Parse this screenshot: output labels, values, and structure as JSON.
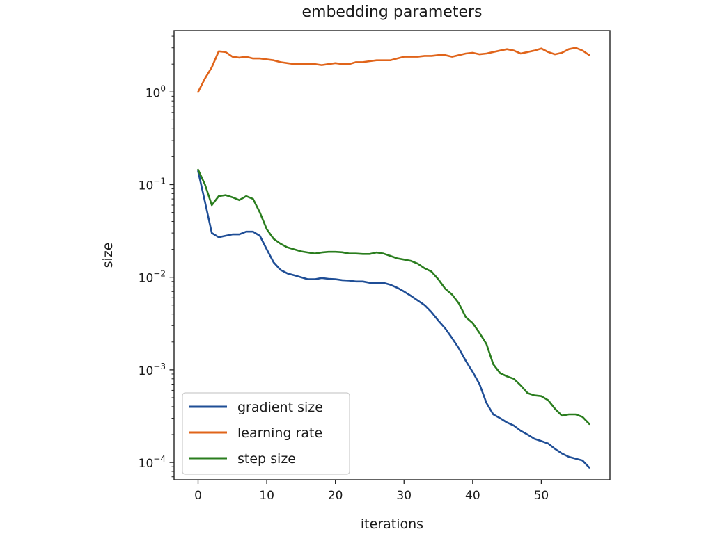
{
  "chart_data": {
    "type": "line",
    "title": "embedding parameters",
    "xlabel": "iterations",
    "ylabel": "size",
    "yscale": "log",
    "xlim": [
      -3.5,
      60
    ],
    "ylim": [
      6.5e-05,
      4.6
    ],
    "xticks": [
      {
        "value": 0,
        "label": "0"
      },
      {
        "value": 10,
        "label": "10"
      },
      {
        "value": 20,
        "label": "20"
      },
      {
        "value": 30,
        "label": "30"
      },
      {
        "value": 40,
        "label": "40"
      },
      {
        "value": 50,
        "label": "50"
      }
    ],
    "yticks": [
      {
        "value": 1,
        "base": "10",
        "exp": "0"
      },
      {
        "value": 0.1,
        "base": "10",
        "exp": "−1"
      },
      {
        "value": 0.01,
        "base": "10",
        "exp": "−2"
      },
      {
        "value": 0.001,
        "base": "10",
        "exp": "−3"
      },
      {
        "value": 0.0001,
        "base": "10",
        "exp": "−4"
      }
    ],
    "grid": false,
    "legend_position": "lower-left",
    "x": [
      0,
      1,
      2,
      3,
      4,
      5,
      6,
      7,
      8,
      9,
      10,
      11,
      12,
      13,
      14,
      15,
      16,
      17,
      18,
      19,
      20,
      21,
      22,
      23,
      24,
      25,
      26,
      27,
      28,
      29,
      30,
      31,
      32,
      33,
      34,
      35,
      36,
      37,
      38,
      39,
      40,
      41,
      42,
      43,
      44,
      45,
      46,
      47,
      48,
      49,
      50,
      51,
      52,
      53,
      54,
      55,
      56,
      57
    ],
    "series": [
      {
        "name": "gradient size",
        "color": "#1f4e96",
        "values": [
          0.14,
          0.065,
          0.03,
          0.027,
          0.028,
          0.029,
          0.029,
          0.031,
          0.031,
          0.028,
          0.02,
          0.0145,
          0.012,
          0.011,
          0.0105,
          0.01,
          0.0095,
          0.0095,
          0.0098,
          0.0096,
          0.0095,
          0.0093,
          0.0092,
          0.009,
          0.009,
          0.0087,
          0.0087,
          0.0087,
          0.0083,
          0.0077,
          0.007,
          0.0063,
          0.0056,
          0.005,
          0.0042,
          0.0034,
          0.0028,
          0.0022,
          0.0017,
          0.00125,
          0.00095,
          0.0007,
          0.00044,
          0.00033,
          0.0003,
          0.00027,
          0.00025,
          0.00022,
          0.0002,
          0.00018,
          0.00017,
          0.00016,
          0.00014,
          0.000125,
          0.000115,
          0.00011,
          0.000105,
          8.8e-05
        ]
      },
      {
        "name": "learning rate",
        "color": "#e0641a",
        "values": [
          1.0,
          1.4,
          1.85,
          2.75,
          2.7,
          2.4,
          2.35,
          2.4,
          2.3,
          2.3,
          2.25,
          2.2,
          2.1,
          2.05,
          2.0,
          2.0,
          2.0,
          2.0,
          1.95,
          2.0,
          2.05,
          2.0,
          2.0,
          2.1,
          2.1,
          2.15,
          2.2,
          2.2,
          2.2,
          2.3,
          2.4,
          2.4,
          2.4,
          2.45,
          2.45,
          2.5,
          2.5,
          2.4,
          2.5,
          2.6,
          2.65,
          2.55,
          2.6,
          2.7,
          2.8,
          2.9,
          2.8,
          2.6,
          2.7,
          2.8,
          2.95,
          2.7,
          2.55,
          2.65,
          2.9,
          3.0,
          2.8,
          2.5
        ]
      },
      {
        "name": "step size",
        "color": "#2a7d1e",
        "values": [
          0.145,
          0.1,
          0.06,
          0.075,
          0.077,
          0.073,
          0.068,
          0.075,
          0.07,
          0.05,
          0.033,
          0.026,
          0.023,
          0.021,
          0.02,
          0.019,
          0.0185,
          0.018,
          0.0185,
          0.0188,
          0.0188,
          0.0186,
          0.018,
          0.018,
          0.0178,
          0.0178,
          0.0185,
          0.018,
          0.017,
          0.016,
          0.0155,
          0.015,
          0.014,
          0.0125,
          0.0115,
          0.0095,
          0.0075,
          0.0065,
          0.0052,
          0.0037,
          0.0032,
          0.0025,
          0.0019,
          0.00115,
          0.00092,
          0.00085,
          0.0008,
          0.00068,
          0.00056,
          0.00053,
          0.00052,
          0.00047,
          0.00038,
          0.00032,
          0.00033,
          0.00033,
          0.00031,
          0.00026
        ]
      }
    ]
  }
}
